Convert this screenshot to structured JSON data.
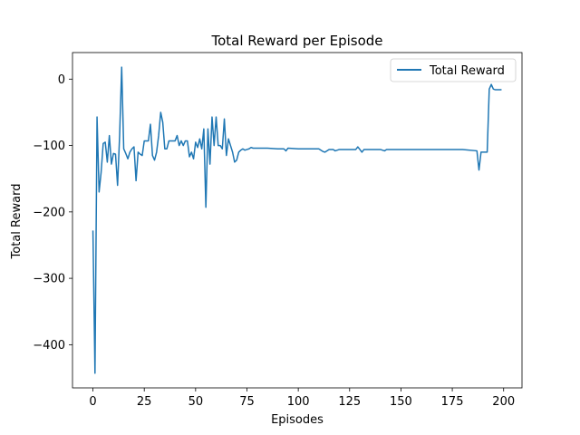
{
  "chart_data": {
    "type": "line",
    "title": "Total Reward per Episode",
    "xlabel": "Episodes",
    "ylabel": "Total Reward",
    "xlim": [
      -9.95,
      208.95
    ],
    "ylim": [
      -465,
      40
    ],
    "xticks": [
      0,
      25,
      50,
      75,
      100,
      125,
      150,
      175,
      200
    ],
    "yticks": [
      0,
      -100,
      -200,
      -300,
      -400
    ],
    "grid": false,
    "legend_position": "top-right",
    "colors": {
      "series": "#1f77b4"
    },
    "series": [
      {
        "name": "Total Reward",
        "x": [
          0,
          1,
          2,
          3,
          4,
          5,
          6,
          7,
          8,
          9,
          10,
          11,
          12,
          13,
          14,
          15,
          16,
          17,
          18,
          19,
          20,
          21,
          22,
          23,
          24,
          25,
          26,
          27,
          28,
          29,
          30,
          31,
          32,
          33,
          34,
          35,
          36,
          37,
          38,
          39,
          40,
          41,
          42,
          43,
          44,
          45,
          46,
          47,
          48,
          49,
          50,
          51,
          52,
          53,
          54,
          55,
          56,
          57,
          58,
          59,
          60,
          61,
          62,
          63,
          64,
          65,
          66,
          67,
          68,
          69,
          70,
          71,
          72,
          73,
          74,
          75,
          76,
          77,
          78,
          80,
          85,
          90,
          93,
          94,
          95,
          100,
          105,
          110,
          112,
          113,
          115,
          117,
          118,
          120,
          125,
          128,
          129,
          130,
          131,
          132,
          135,
          140,
          142,
          143,
          145,
          150,
          160,
          170,
          180,
          187,
          188,
          189,
          190,
          192,
          193,
          194,
          195,
          196,
          199
        ],
        "values": [
          -228,
          -443,
          -57,
          -170,
          -140,
          -97,
          -95,
          -125,
          -85,
          -128,
          -112,
          -113,
          -160,
          -85,
          18,
          -105,
          -112,
          -120,
          -110,
          -105,
          -102,
          -153,
          -110,
          -113,
          -115,
          -93,
          -93,
          -93,
          -68,
          -115,
          -122,
          -110,
          -85,
          -50,
          -65,
          -105,
          -105,
          -93,
          -93,
          -93,
          -93,
          -85,
          -100,
          -93,
          -100,
          -93,
          -93,
          -117,
          -110,
          -120,
          -95,
          -103,
          -90,
          -105,
          -75,
          -193,
          -75,
          -128,
          -57,
          -100,
          -57,
          -100,
          -100,
          -105,
          -60,
          -115,
          -90,
          -100,
          -110,
          -125,
          -122,
          -110,
          -107,
          -105,
          -107,
          -106,
          -105,
          -103,
          -104,
          -104,
          -104,
          -105,
          -105,
          -108,
          -104,
          -105,
          -105,
          -105,
          -109,
          -110,
          -106,
          -106,
          -108,
          -106,
          -106,
          -106,
          -102,
          -106,
          -110,
          -106,
          -106,
          -106,
          -108,
          -106,
          -106,
          -106,
          -106,
          -106,
          -106,
          -108,
          -137,
          -110,
          -110,
          -110,
          -15,
          -8,
          -15,
          -16,
          -16
        ]
      }
    ]
  }
}
